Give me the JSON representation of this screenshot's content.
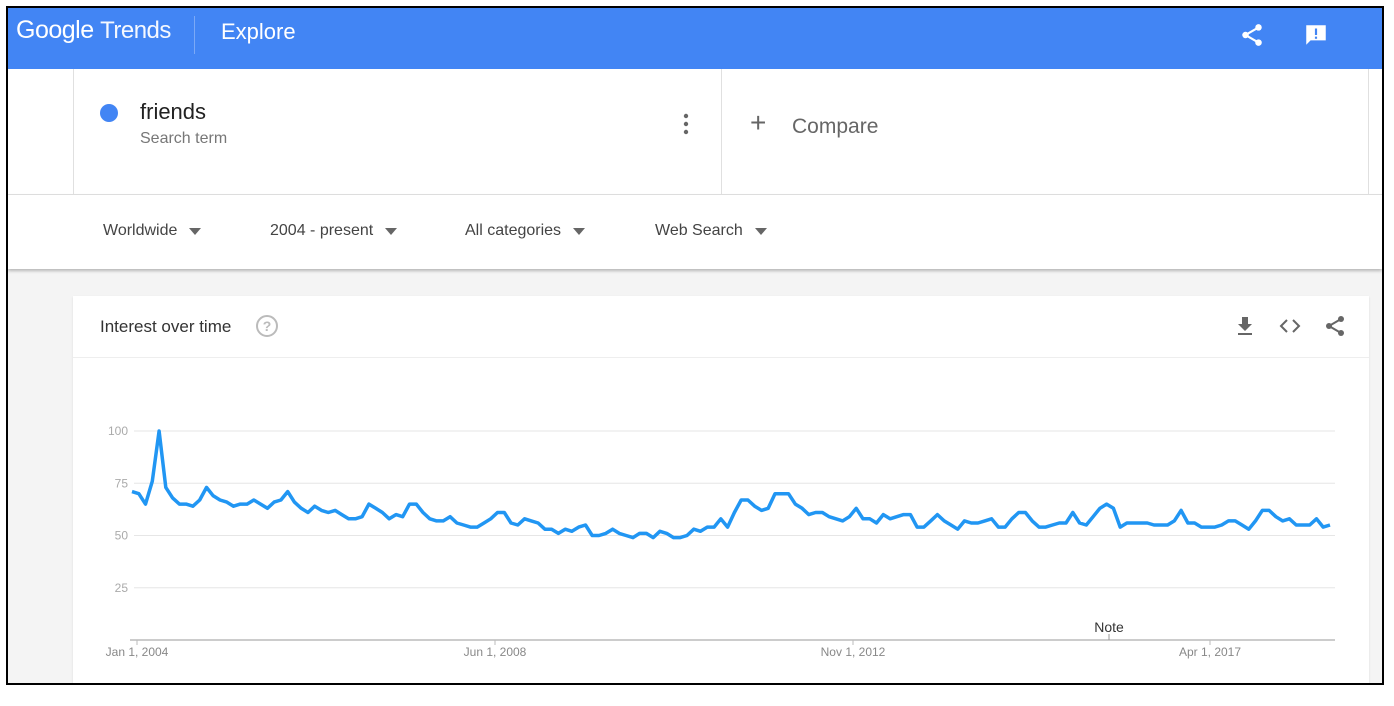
{
  "header": {
    "logo": "Google Trends",
    "logo_word1": "Google",
    "logo_word2": "Trends",
    "title": "Explore",
    "icons": [
      "share-icon",
      "feedback-icon"
    ]
  },
  "search": {
    "term": "friends",
    "term_type": "Search term",
    "term_color": "#4285f4",
    "compare_label": "Compare"
  },
  "filters": [
    {
      "label": "Worldwide"
    },
    {
      "label": "2004 - present"
    },
    {
      "label": "All categories"
    },
    {
      "label": "Web Search"
    }
  ],
  "card": {
    "title": "Interest over time",
    "icons": [
      "download-icon",
      "embed-icon",
      "share-icon"
    ]
  },
  "chart_data": {
    "type": "line",
    "title": "",
    "xlabel": "",
    "ylabel": "",
    "ylim": [
      0,
      100
    ],
    "yticks": [
      25,
      50,
      75,
      100
    ],
    "xtick_labels": [
      "Jan 1, 2004",
      "Jun 1, 2008",
      "Nov 1, 2012",
      "Apr 1, 2017"
    ],
    "annotation": "Note",
    "grid": true,
    "color": "#2196f3",
    "series": [
      {
        "name": "friends",
        "values": [
          71,
          70,
          65,
          76,
          100,
          73,
          68,
          65,
          65,
          64,
          67,
          73,
          69,
          67,
          66,
          64,
          65,
          65,
          67,
          65,
          63,
          66,
          67,
          71,
          66,
          63,
          61,
          64,
          62,
          61,
          62,
          60,
          58,
          58,
          59,
          65,
          63,
          61,
          58,
          60,
          59,
          65,
          65,
          61,
          58,
          57,
          57,
          59,
          56,
          55,
          54,
          54,
          56,
          58,
          61,
          61,
          56,
          55,
          58,
          57,
          56,
          53,
          53,
          51,
          53,
          52,
          54,
          55,
          50,
          50,
          51,
          53,
          51,
          50,
          49,
          51,
          51,
          49,
          52,
          51,
          49,
          49,
          50,
          53,
          52,
          54,
          54,
          58,
          54,
          61,
          67,
          67,
          64,
          62,
          63,
          70,
          70,
          70,
          65,
          63,
          60,
          61,
          61,
          59,
          58,
          57,
          59,
          63,
          58,
          58,
          56,
          60,
          58,
          59,
          60,
          60,
          54,
          54,
          57,
          60,
          57,
          55,
          53,
          57,
          56,
          56,
          57,
          58,
          54,
          54,
          58,
          61,
          61,
          57,
          54,
          54,
          55,
          56,
          56,
          61,
          56,
          55,
          59,
          63,
          65,
          63,
          54,
          56,
          56,
          56,
          56,
          55,
          55,
          55,
          57,
          62,
          56,
          56,
          54,
          54,
          54,
          55,
          57,
          57,
          55,
          53,
          57,
          62,
          62,
          59,
          57,
          58,
          55,
          55,
          55,
          58,
          54,
          55
        ]
      }
    ]
  }
}
